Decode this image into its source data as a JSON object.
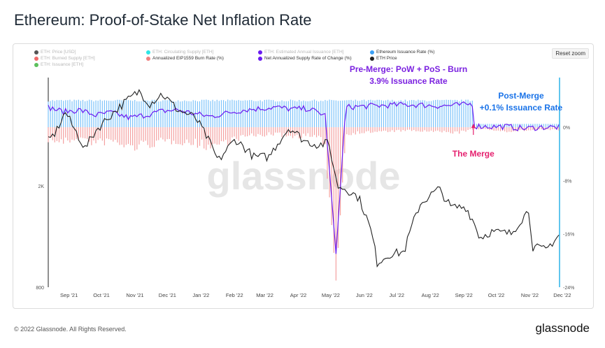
{
  "page": {
    "title": "Ethereum: Proof-of-Stake Net Inflation Rate",
    "reset_label": "Reset zoom",
    "copyright": "© 2022 Glassnode. All Rights Reserved.",
    "logo": "glassnode",
    "watermark": "glassnode"
  },
  "legend": [
    {
      "label": "ETH: Price [USD]",
      "color": "#555555",
      "enabled": false
    },
    {
      "label": "ETH: Circulating Supply [ETH]",
      "color": "#2ee6e6",
      "enabled": false
    },
    {
      "label": "ETH: Estimated Annual Issuance [ETH]",
      "color": "#6a1bf0",
      "enabled": false
    },
    {
      "label": "Ethereum Issuance Rate (%)",
      "color": "#3ba0f5",
      "enabled": true
    },
    {
      "label": "ETH: Burned Supply [ETH]",
      "color": "#f06a6a",
      "enabled": false
    },
    {
      "label": "Annualized EIP1559 Burn Rate (%)",
      "color": "#f08080",
      "enabled": true
    },
    {
      "label": "Net Annualized Supply Rate of Change (%)",
      "color": "#6a1bf0",
      "enabled": true
    },
    {
      "label": "ETH Price",
      "color": "#222222",
      "enabled": true
    },
    {
      "label": "ETH: Issuance [ETH]",
      "color": "#5cc05c",
      "enabled": false
    }
  ],
  "annotations": {
    "pre_merge_line1": "Pre-Merge: PoW + PoS - Burn",
    "pre_merge_line2": "3.9% Issuance Rate",
    "post_merge_line1": "Post-Merge",
    "post_merge_line2": "+0.1% Issuance Rate",
    "merge_label": "The Merge",
    "pre_color": "#7b22e0",
    "post_color": "#1a73e8",
    "merge_color": "#e5206e"
  },
  "chart_data": {
    "type": "line",
    "x_tick_labels": [
      "Sep '21",
      "Oct '21",
      "Nov '21",
      "Dec '21",
      "Jan '22",
      "Feb '22",
      "Mar '22",
      "Apr '22",
      "May '22",
      "Jun '22",
      "Jul '22",
      "Aug '22",
      "Sep '22",
      "Oct '22",
      "Nov '22",
      "Dec '22"
    ],
    "x_range": [
      "2021-08-18",
      "2022-12-03"
    ],
    "left_axis": {
      "scale": "log",
      "tick_labels": [
        "2K",
        "800"
      ],
      "tick_values": [
        2000,
        800
      ],
      "range": [
        800,
        5000
      ]
    },
    "right_axis": {
      "tick_labels": [
        "0%",
        "-8%",
        "-16%",
        "-24%"
      ],
      "tick_values": [
        0,
        -8,
        -16,
        -24
      ],
      "range": [
        -24,
        6.4
      ]
    },
    "merge_date": "2022-09-15",
    "series": [
      {
        "name": "Ethereum Issuance Rate (%)",
        "color": "#7cc3fa",
        "kind": "bar",
        "segments": [
          {
            "from": "2021-08-18",
            "to": "2022-09-14",
            "value": 4.0
          },
          {
            "from": "2022-09-15",
            "to": "2022-12-03",
            "value": 0.5
          }
        ]
      },
      {
        "name": "Annualized EIP1559 Burn Rate (%)",
        "color": "#f4a0a0",
        "kind": "bar",
        "x": [
          "2021-08-18",
          "2021-09-01",
          "2021-09-15",
          "2021-10-01",
          "2021-10-15",
          "2021-11-01",
          "2021-11-15",
          "2021-12-01",
          "2021-12-15",
          "2022-01-01",
          "2022-01-15",
          "2022-02-01",
          "2022-02-15",
          "2022-03-01",
          "2022-03-15",
          "2022-04-01",
          "2022-04-15",
          "2022-05-01",
          "2022-05-11",
          "2022-05-20",
          "2022-06-01",
          "2022-06-15",
          "2022-07-01",
          "2022-07-15",
          "2022-08-01",
          "2022-08-15",
          "2022-09-01",
          "2022-09-15",
          "2022-10-01",
          "2022-10-15",
          "2022-11-01",
          "2022-11-15",
          "2022-12-01"
        ],
        "values": [
          -1.8,
          -2.2,
          -1.6,
          -2.4,
          -2.0,
          -3.0,
          -2.6,
          -2.2,
          -2.0,
          -2.4,
          -2.8,
          -2.0,
          -1.4,
          -1.2,
          -1.0,
          -1.4,
          -1.2,
          -2.2,
          -23.0,
          -1.0,
          -0.8,
          -0.7,
          -0.6,
          -0.5,
          -0.6,
          -0.7,
          -0.8,
          -0.3,
          -0.4,
          -0.6,
          -0.5,
          -0.4,
          -0.4
        ]
      },
      {
        "name": "Net Annualized Supply Rate of Change (%)",
        "color": "#6a1bf0",
        "kind": "line",
        "x": [
          "2021-08-18",
          "2021-09-01",
          "2021-09-15",
          "2021-10-01",
          "2021-10-15",
          "2021-11-01",
          "2021-11-15",
          "2021-12-01",
          "2021-12-15",
          "2022-01-01",
          "2022-01-15",
          "2022-02-01",
          "2022-02-15",
          "2022-03-01",
          "2022-03-15",
          "2022-04-01",
          "2022-04-15",
          "2022-05-01",
          "2022-05-11",
          "2022-05-20",
          "2022-06-01",
          "2022-06-15",
          "2022-07-01",
          "2022-07-15",
          "2022-08-01",
          "2022-08-15",
          "2022-09-01",
          "2022-09-14",
          "2022-09-15",
          "2022-10-01",
          "2022-10-15",
          "2022-11-01",
          "2022-11-15",
          "2022-12-01"
        ],
        "values": [
          3.0,
          2.3,
          2.6,
          1.8,
          2.2,
          1.4,
          1.8,
          2.4,
          2.6,
          2.0,
          1.6,
          2.2,
          2.6,
          2.8,
          3.0,
          2.7,
          2.8,
          1.8,
          -19.0,
          3.0,
          3.1,
          3.2,
          3.3,
          3.4,
          3.3,
          3.2,
          3.3,
          3.5,
          0.2,
          0.1,
          0.1,
          -0.2,
          0.0,
          0.0
        ]
      },
      {
        "name": "ETH Price",
        "color": "#222222",
        "kind": "line",
        "x": [
          "2021-08-18",
          "2021-08-25",
          "2021-09-03",
          "2021-09-10",
          "2021-09-21",
          "2021-10-01",
          "2021-10-15",
          "2021-10-29",
          "2021-11-10",
          "2021-11-20",
          "2021-12-01",
          "2021-12-15",
          "2022-01-01",
          "2022-01-10",
          "2022-01-22",
          "2022-02-07",
          "2022-02-24",
          "2022-03-10",
          "2022-03-29",
          "2022-04-12",
          "2022-04-25",
          "2022-05-04",
          "2022-05-12",
          "2022-05-20",
          "2022-06-01",
          "2022-06-13",
          "2022-06-18",
          "2022-06-30",
          "2022-07-13",
          "2022-07-28",
          "2022-08-14",
          "2022-08-25",
          "2022-09-08",
          "2022-09-15",
          "2022-09-21",
          "2022-10-01",
          "2022-10-20",
          "2022-11-05",
          "2022-11-09",
          "2022-11-21",
          "2022-12-03"
        ],
        "values": [
          3000,
          3250,
          3900,
          3400,
          2800,
          3300,
          3800,
          4300,
          4700,
          4200,
          4600,
          4000,
          3700,
          3200,
          2500,
          3050,
          2600,
          2600,
          3400,
          3000,
          2900,
          2950,
          2000,
          1950,
          1800,
          1300,
          1000,
          1080,
          1100,
          1700,
          1950,
          1650,
          1650,
          1450,
          1250,
          1320,
          1300,
          1600,
          1150,
          1120,
          1280
        ]
      }
    ]
  }
}
